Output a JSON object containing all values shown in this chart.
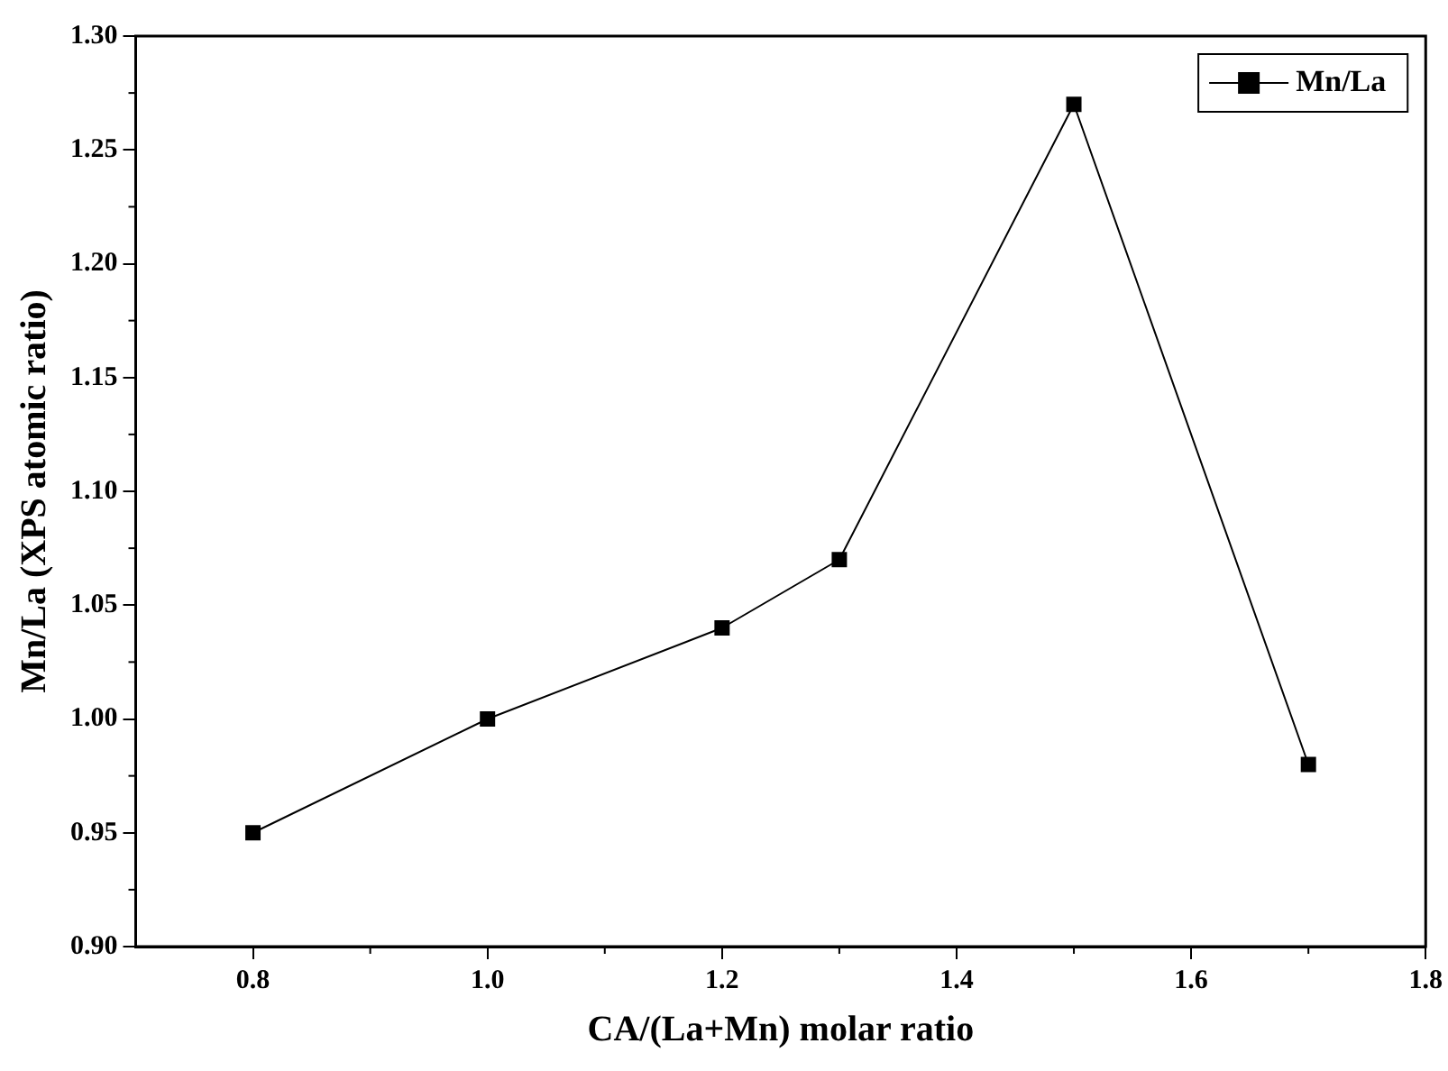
{
  "chart_data": {
    "type": "line",
    "xlabel": "CA/(La+Mn) molar ratio",
    "ylabel": "Mn/La (XPS atomic ratio)",
    "x": [
      0.8,
      1.0,
      1.2,
      1.3,
      1.5,
      1.7
    ],
    "series": [
      {
        "name": "Mn/La",
        "color": "#000000",
        "values": [
          0.95,
          1.0,
          1.04,
          1.07,
          1.27,
          0.98
        ]
      }
    ],
    "xlim": [
      0.7,
      1.8
    ],
    "xticks": [
      0.8,
      {
        "value": 1.0,
        "label": "1.0"
      },
      1.2,
      1.4,
      1.6,
      1.8
    ],
    "ylim": [
      0.9,
      1.3
    ],
    "yticks": [
      {
        "value": 0.9,
        "label": "0.90"
      },
      0.95,
      {
        "value": 1.0,
        "label": "1.00"
      },
      1.05,
      {
        "value": 1.1,
        "label": "1.10"
      },
      1.15,
      {
        "value": 1.2,
        "label": "1.20"
      },
      1.25,
      {
        "value": 1.3,
        "label": "1.30"
      }
    ],
    "grid": false,
    "legend": "top right",
    "marker": "square",
    "line_style": "solid"
  }
}
